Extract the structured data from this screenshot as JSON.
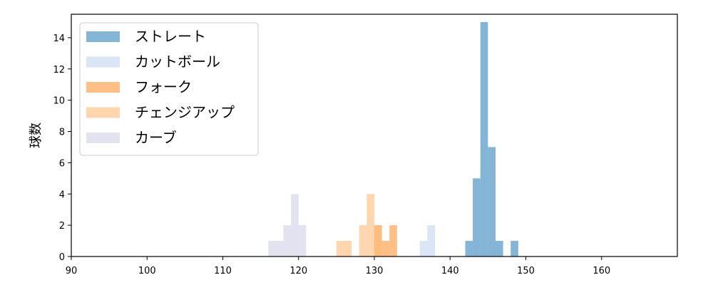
{
  "chart_data": {
    "type": "bar",
    "subtype": "histogram",
    "title": "",
    "xlabel": "",
    "ylabel": "球数",
    "xlim": [
      90,
      170
    ],
    "ylim": [
      0,
      15.5
    ],
    "xticks": [
      90,
      100,
      110,
      120,
      130,
      140,
      150,
      160
    ],
    "yticks": [
      0,
      2,
      4,
      6,
      8,
      10,
      12,
      14
    ],
    "grid": false,
    "legend_position": "top-left",
    "bin_width": 1,
    "series": [
      {
        "name": "ストレート",
        "color": "#1f77b4",
        "alpha": 0.55,
        "bins": [
          [
            142,
            1
          ],
          [
            143,
            5
          ],
          [
            144,
            15
          ],
          [
            145,
            7
          ],
          [
            146,
            1
          ],
          [
            148,
            1
          ]
        ]
      },
      {
        "name": "カットボール",
        "color": "#aec7e8",
        "alpha": 0.45,
        "bins": [
          [
            136,
            1
          ],
          [
            137,
            2
          ]
        ]
      },
      {
        "name": "フォーク",
        "color": "#ff7f0e",
        "alpha": 0.5,
        "bins": [
          [
            130,
            2
          ],
          [
            131,
            1
          ],
          [
            132,
            2
          ]
        ]
      },
      {
        "name": "チェンジアップ",
        "color": "#ffbb78",
        "alpha": 0.6,
        "bins": [
          [
            125,
            1
          ],
          [
            126,
            1
          ],
          [
            128,
            2
          ],
          [
            129,
            4
          ],
          [
            130,
            2
          ]
        ]
      },
      {
        "name": "カーブ",
        "color": "#c5c5e3",
        "alpha": 0.5,
        "bins": [
          [
            116,
            1
          ],
          [
            117,
            1
          ],
          [
            118,
            2
          ],
          [
            119,
            4
          ],
          [
            120,
            2
          ]
        ]
      }
    ]
  }
}
